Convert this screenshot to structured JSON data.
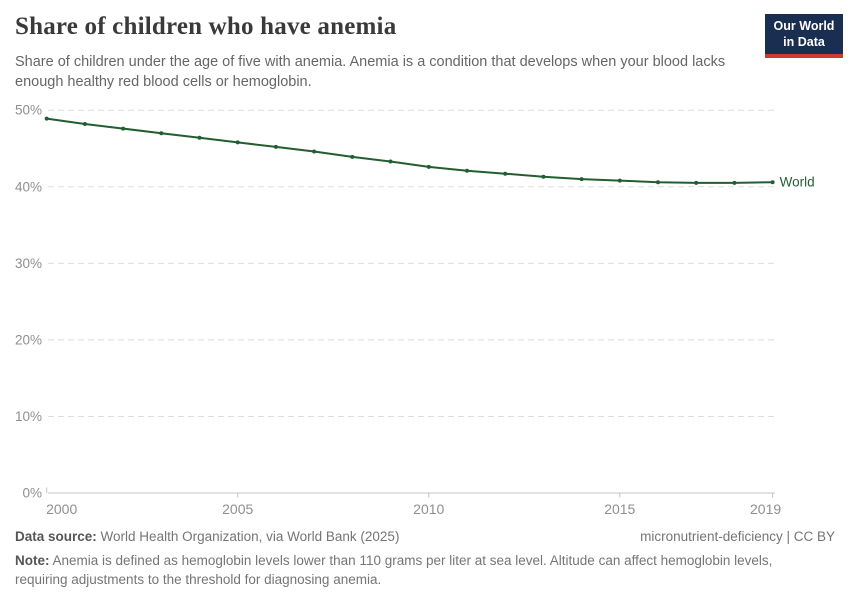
{
  "header": {
    "title": "Share of children who have anemia",
    "subtitle": "Share of children under the age of five with anemia. Anemia is a condition that develops when your blood lacks enough healthy red blood cells or hemoglobin.",
    "logo": {
      "line1": "Our World",
      "line2": "in Data"
    }
  },
  "chart_data": {
    "type": "line",
    "title": "Share of children who have anemia",
    "x": [
      2000,
      2001,
      2002,
      2003,
      2004,
      2005,
      2006,
      2007,
      2008,
      2009,
      2010,
      2011,
      2012,
      2013,
      2014,
      2015,
      2016,
      2017,
      2018,
      2019
    ],
    "series": [
      {
        "name": "World",
        "color": "#235e31",
        "values": [
          48.9,
          48.2,
          47.6,
          47.0,
          46.4,
          45.8,
          45.2,
          44.6,
          43.9,
          43.3,
          42.6,
          42.1,
          41.7,
          41.3,
          41.0,
          40.8,
          40.6,
          40.5,
          40.5,
          40.6
        ]
      }
    ],
    "xlabel": "",
    "ylabel": "",
    "xlim": [
      2000,
      2019
    ],
    "ylim": [
      0,
      50
    ],
    "x_ticks": [
      2000,
      2005,
      2010,
      2015,
      2019
    ],
    "y_ticks": [
      0,
      10,
      20,
      30,
      40,
      50
    ],
    "y_tick_suffix": "%",
    "grid": "horizontal-dashed",
    "legend_position": "end-of-line-label"
  },
  "footer": {
    "data_source_label": "Data source:",
    "data_source_value": "World Health Organization, via World Bank (2025)",
    "license": "micronutrient-deficiency | CC BY",
    "note_label": "Note:",
    "note_value": "Anemia is defined as hemoglobin levels lower than 110 grams per liter at sea level. Altitude can affect hemoglobin levels, requiring adjustments to the threshold for diagnosing anemia."
  },
  "colors": {
    "line": "#235e31",
    "logo_bg": "#1a2e51",
    "logo_accent": "#cf3b32",
    "gridline": "#dedede",
    "axis": "#c4c4c4",
    "tick_text": "#8f8f8f"
  }
}
